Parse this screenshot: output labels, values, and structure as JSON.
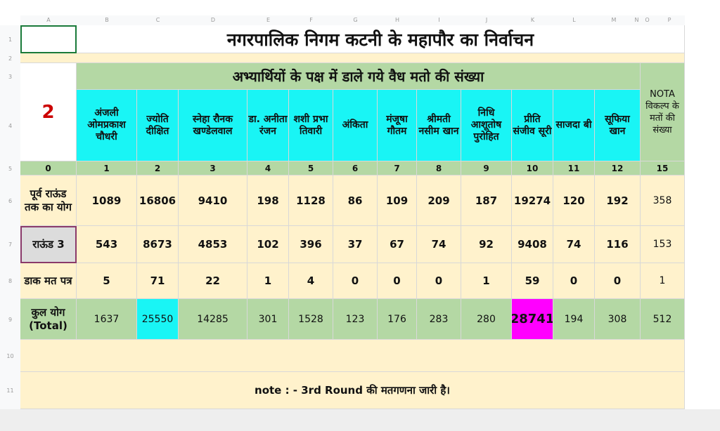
{
  "sheet": {
    "column_letters": [
      "A",
      "B",
      "C",
      "D",
      "E",
      "F",
      "G",
      "H",
      "I",
      "J",
      "K",
      "L",
      "M",
      "N",
      "O",
      "P"
    ],
    "row_numbers": [
      "1",
      "2",
      "3",
      "4",
      "5",
      "6",
      "7",
      "8",
      "9",
      "10",
      "11"
    ]
  },
  "title": "नगरपालिक निगम कटनी के महापौर का निर्वाचन",
  "subtitle": "अभ्यार्थियों के पक्ष में डाले गये वैध मतो की संख्या",
  "round_number": "2",
  "nota_header": "NOTA विकल्प के मतों की संख्या",
  "candidates": [
    {
      "name": "अंजली ओमप्रकाश चौधरी",
      "index": "1",
      "previous": "1089",
      "round": "543",
      "postal": "5",
      "total": "1637"
    },
    {
      "name": "ज्योति दीक्षित",
      "index": "2",
      "previous": "16806",
      "round": "8673",
      "postal": "71",
      "total": "25550"
    },
    {
      "name": "स्नेहा रौनक खण्डेलवाल",
      "index": "3",
      "previous": "9410",
      "round": "4853",
      "postal": "22",
      "total": "14285"
    },
    {
      "name": "डा. अनीता रंजन",
      "index": "4",
      "previous": "198",
      "round": "102",
      "postal": "1",
      "total": "301"
    },
    {
      "name": "शशी प्रभा तिवारी",
      "index": "5",
      "previous": "1128",
      "round": "396",
      "postal": "4",
      "total": "1528"
    },
    {
      "name": "अंकिता",
      "index": "6",
      "previous": "86",
      "round": "37",
      "postal": "0",
      "total": "123"
    },
    {
      "name": "मंजूषा गौतम",
      "index": "7",
      "previous": "109",
      "round": "67",
      "postal": "0",
      "total": "176"
    },
    {
      "name": "श्रीमती नसीम खान",
      "index": "8",
      "previous": "209",
      "round": "74",
      "postal": "0",
      "total": "283"
    },
    {
      "name": "निधि आशूतोष पुरोहित",
      "index": "9",
      "previous": "187",
      "round": "92",
      "postal": "1",
      "total": "280"
    },
    {
      "name": "प्रीति संजीव सूरी",
      "index": "10",
      "previous": "19274",
      "round": "9408",
      "postal": "59",
      "total": "28741"
    },
    {
      "name": "साजदा बी",
      "index": "11",
      "previous": "120",
      "round": "74",
      "postal": "0",
      "total": "194"
    },
    {
      "name": "सूफिया खान",
      "index": "12",
      "previous": "192",
      "round": "116",
      "postal": "0",
      "total": "308"
    }
  ],
  "nota": {
    "index": "15",
    "previous": "358",
    "round": "153",
    "postal": "1",
    "total": "512"
  },
  "row_labels": {
    "index": "0",
    "previous": "पूर्व राऊंड तक का योग",
    "round": "राऊंड 3",
    "postal": "डाक मत पत्र",
    "total": "कुल योग (Total)"
  },
  "note": "note : - 3rd Round की मतगणना जारी है।",
  "colors": {
    "green": "#b4d8a4",
    "cyan": "#19f5f5",
    "cream": "#fff2cc",
    "magenta": "#ff00ff",
    "round_text": "#cc0000"
  }
}
